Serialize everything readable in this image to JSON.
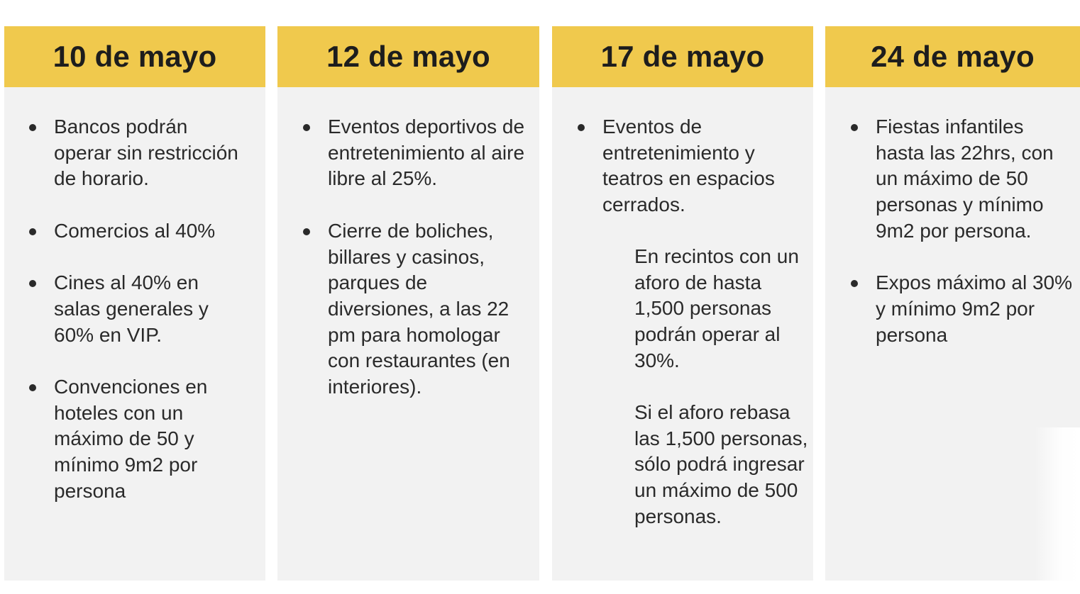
{
  "columns": [
    {
      "date": "10 de mayo",
      "items": [
        "Bancos podrán operar sin restricción de horario.",
        "Comercios al 40%",
        "Cines al 40% en salas generales y 60% en VIP.",
        "Convenciones en hoteles con un máximo de 50 y mínimo 9m2 por persona"
      ]
    },
    {
      "date": "12 de mayo",
      "items": [
        "Eventos deportivos de entretenimiento al aire libre al 25%.",
        "Cierre de boliches, billares y casinos, parques de diversiones, a las 22 pm para homologar con restaurantes (en interiores)."
      ]
    },
    {
      "date": "17 de mayo",
      "items": [
        "Eventos de entretenimiento y teatros en espacios cerrados."
      ],
      "sub_paragraphs": [
        "En recintos con un aforo de hasta 1,500 personas podrán operar al 30%.",
        "Si el aforo rebasa las 1,500 personas, sólo podrá ingresar un máximo de 500 personas."
      ]
    },
    {
      "date": "24 de mayo",
      "items": [
        "Fiestas infantiles hasta las 22hrs, con un máximo de 50 personas y mínimo 9m2 por persona.",
        "Expos máximo al 30% y mínimo 9m2 por persona"
      ]
    }
  ]
}
